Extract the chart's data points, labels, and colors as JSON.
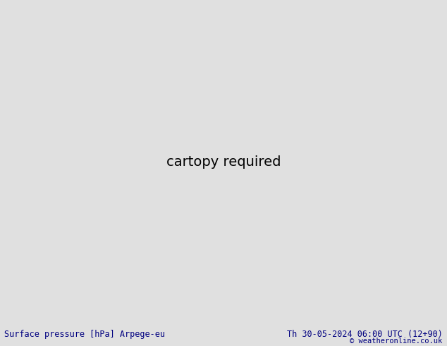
{
  "title_left": "Surface pressure [hPa] Arpege-eu",
  "title_right": "Th 30-05-2024 06:00 UTC (12+90)",
  "copyright": "© weatheronline.co.uk",
  "bg_color": "#e0e0e0",
  "land_color": "#b5d98a",
  "sea_color": "#c8c8c8",
  "contour_color_blue": "#1414cc",
  "contour_color_black": "#000000",
  "contour_color_red": "#cc0000",
  "border_color": "#555555",
  "coast_color": "#888888",
  "bottom_bar_color": "#ffffff",
  "bottom_text_color": "#000080",
  "copyright_color": "#000080",
  "figwidth": 6.34,
  "figheight": 4.9,
  "dpi": 100,
  "bottom_bar_height": 0.065,
  "lon_min": -12.0,
  "lon_max": 30.0,
  "lat_min": 35.0,
  "lat_max": 60.0
}
